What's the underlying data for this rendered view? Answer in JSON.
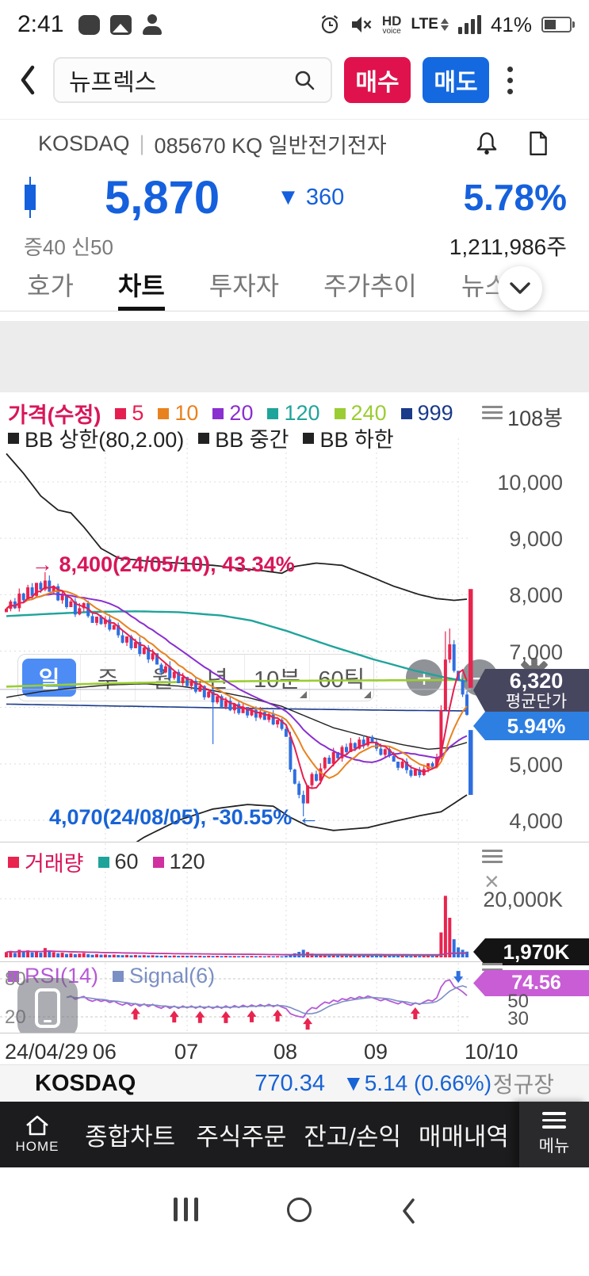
{
  "status_bar": {
    "time": "2:41",
    "hd": "HD",
    "hd_sub": "voice",
    "lte": "LTE",
    "battery": "41%"
  },
  "header": {
    "search_value": "뉴프렉스",
    "buy": "매수",
    "sell": "매도"
  },
  "stock": {
    "market": "KOSDAQ",
    "separator": "|",
    "code_line": "085670 KQ 일반전기전자",
    "price": "5,870",
    "change": "▼ 360",
    "change_pct": "5.78%",
    "flags": "증40 신50",
    "trade_volume": "1,211,986주"
  },
  "tabs": {
    "items": [
      "호가",
      "차트",
      "투자자",
      "주가추이",
      "뉴스/공"
    ],
    "active": "차트"
  },
  "period_bar": {
    "items": [
      "일",
      "주",
      "월",
      "년",
      "10분",
      "60틱"
    ],
    "active": "일",
    "plus": "+",
    "minus": "−"
  },
  "legend": {
    "price_label": "가격(수정)",
    "price_label_color": "#d8165a",
    "ma_items": [
      {
        "label": "5",
        "color": "#e61e50"
      },
      {
        "label": "10",
        "color": "#e8821e"
      },
      {
        "label": "20",
        "color": "#8a2fd0"
      },
      {
        "label": "120",
        "color": "#1fa49b"
      },
      {
        "label": "240",
        "color": "#9acd32"
      },
      {
        "label": "999",
        "color": "#1a3a8a"
      }
    ],
    "bb_items": [
      "BB 상한(80,2.00)",
      "BB 중간",
      "BB 하한"
    ]
  },
  "volume_legend": {
    "items": [
      {
        "label": "거래량",
        "color": "#e8244f",
        "text_color": "#d8165a"
      },
      {
        "label": "60",
        "color": "#1fa49b",
        "text_color": "#333333"
      },
      {
        "label": "120",
        "color": "#d030a0",
        "text_color": "#333333"
      }
    ]
  },
  "rsi_legend": {
    "items": [
      {
        "label": "RSI(14)",
        "color": "#b659d6"
      },
      {
        "label": "Signal(6)",
        "color": "#7b8fc4"
      }
    ]
  },
  "right_axis": {
    "bar_count": "108봉",
    "price_ticks": [
      {
        "label": "10,000",
        "value": 10000
      },
      {
        "label": "9,000",
        "value": 9000
      },
      {
        "label": "8,000",
        "value": 8000
      },
      {
        "label": "7,000",
        "value": 7000
      },
      {
        "label": "5,000",
        "value": 5000
      },
      {
        "label": "4,000",
        "value": 4000
      }
    ],
    "avg_price": "6,320",
    "avg_caption": "평균단가",
    "pct_badge": "5.94%",
    "vol_tick": "20,000K",
    "vol_badge": "1,970K",
    "close_icon": "×",
    "rsi_badge": "74.56",
    "rsi_right_ticks": [
      "50",
      "30"
    ],
    "rsi_left_ticks": [
      "80",
      "20"
    ]
  },
  "annotations": {
    "high": "→ 8,400(24/05/10), 43.34%",
    "low": "4,070(24/08/05), -30.55%  ←"
  },
  "x_axis": {
    "labels": [
      "24/04/29",
      "06",
      "07",
      "08",
      "09",
      "10/10"
    ]
  },
  "index_bar": {
    "market": "KOSDAQ",
    "value": "770.34",
    "change": "▼5.14 (0.66%)",
    "session": "정규장"
  },
  "bottom_nav": {
    "home": "HOME",
    "items": [
      "종합차트",
      "주식주문",
      "잔고/손익",
      "매매내역"
    ],
    "menu": "메뉴"
  },
  "chart_data": {
    "type": "candlestick",
    "bars": 108,
    "colors": {
      "up": "#e8244f",
      "down": "#2f6fe0"
    },
    "price_axis": [
      10000,
      9000,
      8000,
      7000,
      6000,
      5000,
      4000
    ],
    "avg_price": 6320,
    "last_price": 5870,
    "month_tick_idx": [
      23,
      42,
      65,
      86,
      105
    ],
    "closes": [
      7750,
      7880,
      7760,
      8020,
      7900,
      8130,
      7980,
      8210,
      8090,
      8250,
      8050,
      8150,
      7900,
      8000,
      7780,
      7880,
      7650,
      7760,
      7850,
      7620,
      7500,
      7610,
      7480,
      7560,
      7380,
      7460,
      7280,
      7150,
      7260,
      7050,
      7160,
      6950,
      7060,
      6850,
      6960,
      6760,
      6620,
      6730,
      6520,
      6630,
      6430,
      6540,
      6380,
      6470,
      6280,
      6380,
      6180,
      6280,
      6090,
      6200,
      6010,
      6120,
      5950,
      6060,
      5900,
      6010,
      5860,
      5960,
      5820,
      5920,
      5780,
      5880,
      5700,
      5780,
      5620,
      5480,
      4900,
      4650,
      4450,
      4300,
      4620,
      4820,
      4700,
      4920,
      5110,
      5000,
      5210,
      5100,
      5300,
      5210,
      5370,
      5270,
      5430,
      5330,
      5480,
      5380,
      5270,
      5160,
      5260,
      5140,
      5040,
      4930,
      5040,
      4890,
      4790,
      4900,
      4800,
      4910,
      5010,
      4950,
      5120,
      5950,
      6850,
      7120,
      6650,
      6480,
      6230,
      5870
    ],
    "volumes_k": [
      1800,
      2200,
      1500,
      2600,
      1900,
      2400,
      1700,
      2100,
      1600,
      3200,
      2400,
      1800,
      1400,
      1600,
      1200,
      1400,
      1100,
      1300,
      1500,
      1100,
      900,
      1100,
      950,
      1000,
      850,
      950,
      800,
      750,
      850,
      700,
      800,
      680,
      760,
      650,
      720,
      620,
      580,
      660,
      560,
      640,
      540,
      600,
      560,
      620,
      520,
      580,
      500,
      560,
      480,
      540,
      460,
      520,
      450,
      500,
      440,
      490,
      430,
      480,
      420,
      470,
      410,
      460,
      400,
      440,
      390,
      520,
      980,
      1400,
      1900,
      2600,
      1800,
      1300,
      900,
      1000,
      1100,
      800,
      950,
      750,
      900,
      700,
      850,
      680,
      800,
      650,
      780,
      620,
      700,
      600,
      680,
      580,
      560,
      540,
      600,
      520,
      500,
      560,
      480,
      540,
      580,
      520,
      900,
      8500,
      21000,
      13500,
      6200,
      3400,
      2600,
      1970
    ],
    "wick_overrides": {
      "9": {
        "high": 8400
      },
      "48": {
        "low": 5350
      },
      "69": {
        "low": 4070
      },
      "102": {
        "high": 7350
      },
      "103": {
        "high": 7400
      }
    },
    "ma_periods": [
      5,
      10,
      20
    ],
    "overlay_lines": {
      "bb_upper": [
        [
          0,
          10500
        ],
        [
          4,
          10150
        ],
        [
          8,
          9750
        ],
        [
          12,
          9500
        ],
        [
          15,
          9450
        ],
        [
          18,
          9200
        ],
        [
          22,
          8820
        ],
        [
          26,
          8650
        ],
        [
          32,
          8600
        ],
        [
          40,
          8560
        ],
        [
          48,
          8520
        ],
        [
          55,
          8460
        ],
        [
          60,
          8420
        ],
        [
          64,
          8380
        ],
        [
          67,
          8500
        ],
        [
          72,
          8560
        ],
        [
          78,
          8520
        ],
        [
          84,
          8340
        ],
        [
          90,
          8150
        ],
        [
          96,
          8000
        ],
        [
          100,
          7930
        ],
        [
          104,
          7900
        ],
        [
          107,
          7920
        ]
      ],
      "bb_mid": [
        [
          0,
          6180
        ],
        [
          8,
          6280
        ],
        [
          16,
          6350
        ],
        [
          24,
          6400
        ],
        [
          32,
          6420
        ],
        [
          40,
          6380
        ],
        [
          48,
          6300
        ],
        [
          56,
          6180
        ],
        [
          64,
          6020
        ],
        [
          70,
          5830
        ],
        [
          76,
          5640
        ],
        [
          84,
          5480
        ],
        [
          92,
          5340
        ],
        [
          98,
          5260
        ],
        [
          103,
          5290
        ],
        [
          107,
          5380
        ]
      ],
      "bb_lower": [
        [
          0,
          1900
        ],
        [
          8,
          2400
        ],
        [
          16,
          2900
        ],
        [
          24,
          3300
        ],
        [
          32,
          3700
        ],
        [
          40,
          4000
        ],
        [
          48,
          4200
        ],
        [
          56,
          4280
        ],
        [
          62,
          4250
        ],
        [
          66,
          4050
        ],
        [
          70,
          3900
        ],
        [
          76,
          3820
        ],
        [
          84,
          3870
        ],
        [
          90,
          3980
        ],
        [
          96,
          4080
        ],
        [
          101,
          4150
        ],
        [
          104,
          4300
        ],
        [
          107,
          4450
        ]
      ],
      "ma120": [
        [
          0,
          7620
        ],
        [
          10,
          7660
        ],
        [
          20,
          7695
        ],
        [
          30,
          7705
        ],
        [
          40,
          7690
        ],
        [
          50,
          7630
        ],
        [
          57,
          7540
        ],
        [
          65,
          7360
        ],
        [
          75,
          7100
        ],
        [
          85,
          6860
        ],
        [
          95,
          6650
        ],
        [
          102,
          6530
        ],
        [
          107,
          6460
        ]
      ],
      "ma240": [
        [
          0,
          6370
        ],
        [
          20,
          6420
        ],
        [
          40,
          6450
        ],
        [
          60,
          6470
        ],
        [
          80,
          6480
        ],
        [
          100,
          6485
        ],
        [
          107,
          6490
        ]
      ],
      "ma999": [
        [
          0,
          6060
        ],
        [
          30,
          6020
        ],
        [
          60,
          5980
        ],
        [
          90,
          5950
        ],
        [
          107,
          5940
        ]
      ]
    },
    "side_bars": {
      "up": [
        8100,
        6350
      ],
      "down": [
        5600,
        4450
      ]
    },
    "volume_axis_value": 20000,
    "rsi_levels": [
      80,
      20
    ]
  }
}
